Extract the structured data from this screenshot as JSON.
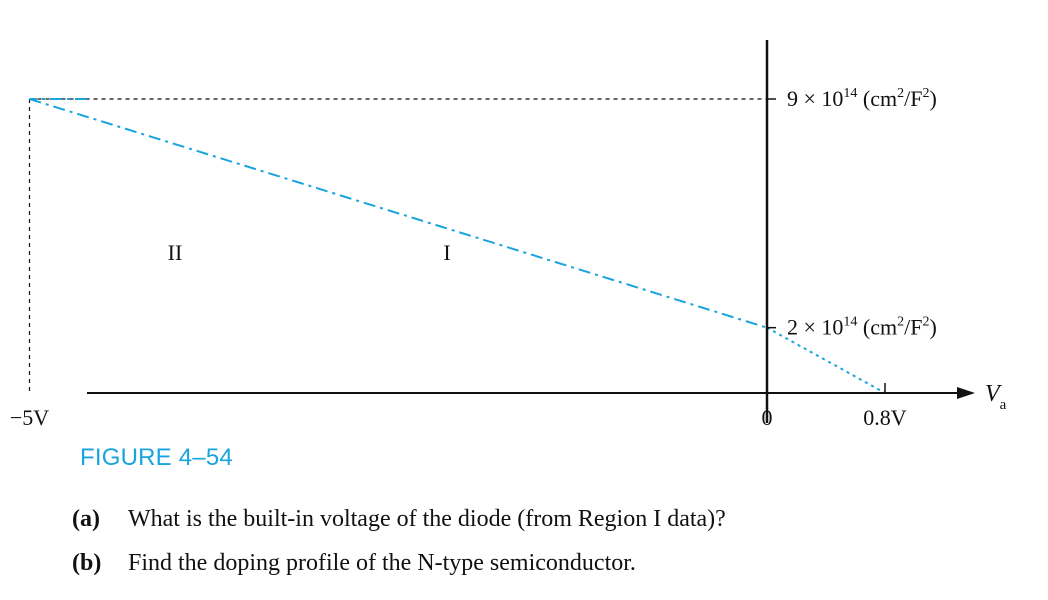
{
  "chart_data": {
    "type": "line",
    "xlabel_base": "V",
    "xlabel_sub": "a",
    "regions": [
      "II",
      "I"
    ],
    "x_ticks": [
      {
        "value": -5,
        "label": "−5V"
      },
      {
        "value": 0,
        "label": "0"
      },
      {
        "value": 0.8,
        "label": "0.8V"
      }
    ],
    "y_ticks": [
      {
        "value": 9,
        "mantissa": "9 × 10",
        "exp": "14",
        "unit_pre": " (cm",
        "unit_exp": "2",
        "unit_mid": "/F",
        "unit_exp2": "2",
        "unit_post": ")"
      },
      {
        "value": 2,
        "mantissa": "2 × 10",
        "exp": "14",
        "unit_pre": " (cm",
        "unit_exp": "2",
        "unit_mid": "/F",
        "unit_exp2": "2",
        "unit_post": ")"
      }
    ],
    "series": [
      {
        "points": [
          [
            -5,
            9
          ],
          [
            0,
            2
          ],
          [
            0.8,
            0
          ]
        ],
        "flat_before": -5,
        "color": "#1aa4de"
      }
    ],
    "reference_lines": {
      "vertical_at_x": -5,
      "horizontal_at_y": 9
    },
    "xlim": [
      -9.9,
      1.7
    ],
    "ylim": [
      0,
      10
    ]
  },
  "figure_label": "FIGURE 4–54",
  "questions": [
    {
      "label": "(a)",
      "text": "What is the built-in voltage of the diode (from Region I data)?"
    },
    {
      "label": "(b)",
      "text": "Find the doping profile of the N-type semiconductor."
    }
  ],
  "colors": {
    "accent": "#1aa4de",
    "text": "#111111"
  }
}
